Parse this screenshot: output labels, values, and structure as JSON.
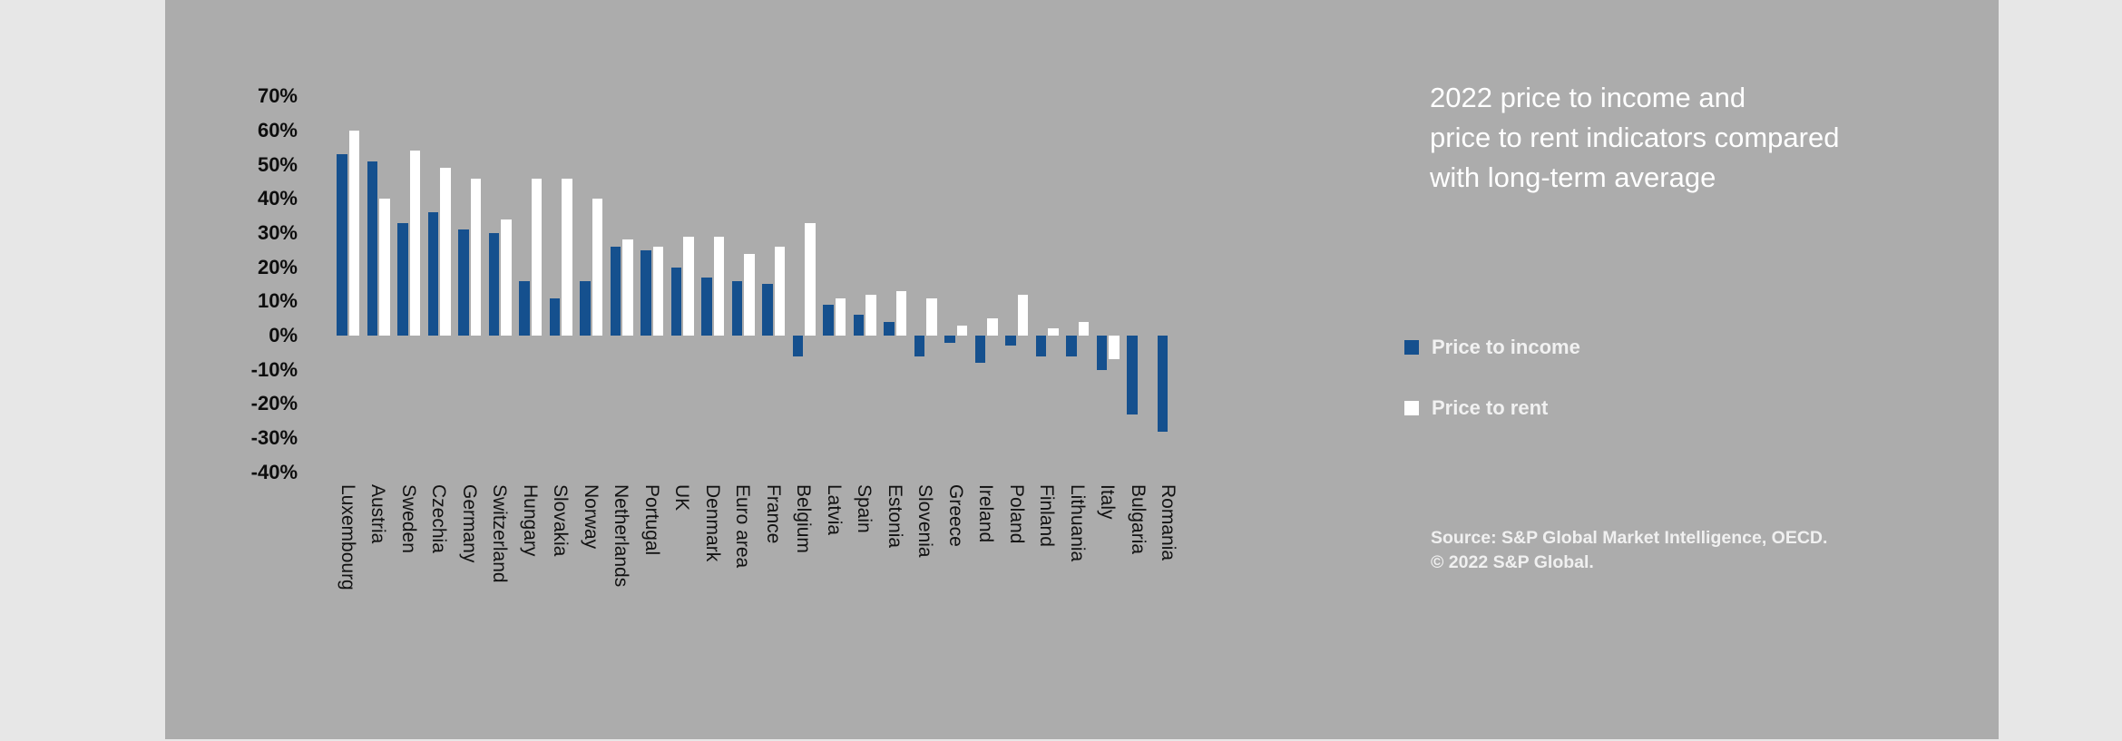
{
  "background": {
    "page_color": "#e7e7e7",
    "panel_color": "#acacac"
  },
  "title": {
    "lines": [
      "2022 price to income and",
      "price to rent indicators compared",
      "with long-term average"
    ]
  },
  "legend": [
    {
      "label": "Price to income",
      "color": "#15508e"
    },
    {
      "label": "Price to rent",
      "color": "#ffffff"
    }
  ],
  "source": {
    "line1": "Source: S&P Global Market Intelligence, OECD.",
    "line2": "© 2022 S&P Global."
  },
  "chart_data": {
    "type": "bar",
    "title": "2022 price to income and price to rent indicators compared with long-term average",
    "categories": [
      "Luxembourg",
      "Austria",
      "Sweden",
      "Czechia",
      "Germany",
      "Switzerland",
      "Hungary",
      "Slovakia",
      "Norway",
      "Netherlands",
      "Portugal",
      "UK",
      "Denmark",
      "Euro area",
      "France",
      "Belgium",
      "Latvia",
      "Spain",
      "Estonia",
      "Slovenia",
      "Greece",
      "Ireland",
      "Poland",
      "Finland",
      "Lithuania",
      "Italy",
      "Bulgaria",
      "Romania"
    ],
    "series": [
      {
        "name": "Price to income",
        "color": "#15508e",
        "values": [
          53,
          51,
          33,
          36,
          31,
          30,
          16,
          11,
          16,
          26,
          25,
          20,
          17,
          16,
          15,
          -6,
          9,
          6,
          4,
          -6,
          -2,
          -8,
          -3,
          -6,
          -6,
          -10,
          -23,
          -28
        ]
      },
      {
        "name": "Price to rent",
        "color": "#ffffff",
        "values": [
          60,
          40,
          54,
          49,
          46,
          34,
          46,
          46,
          40,
          28,
          26,
          29,
          29,
          24,
          26,
          33,
          11,
          12,
          13,
          11,
          3,
          5,
          12,
          2,
          4,
          -7,
          null,
          null
        ]
      }
    ],
    "y_axis": {
      "unit": "%",
      "max": 70,
      "min": -40,
      "step": 10,
      "ticks": [
        "70%",
        "60%",
        "50%",
        "40%",
        "30%",
        "20%",
        "10%",
        "0%",
        "-10%",
        "-20%",
        "-30%",
        "-40%"
      ]
    },
    "grid": false,
    "legend_position": "right",
    "xlabel": "",
    "ylabel": ""
  }
}
